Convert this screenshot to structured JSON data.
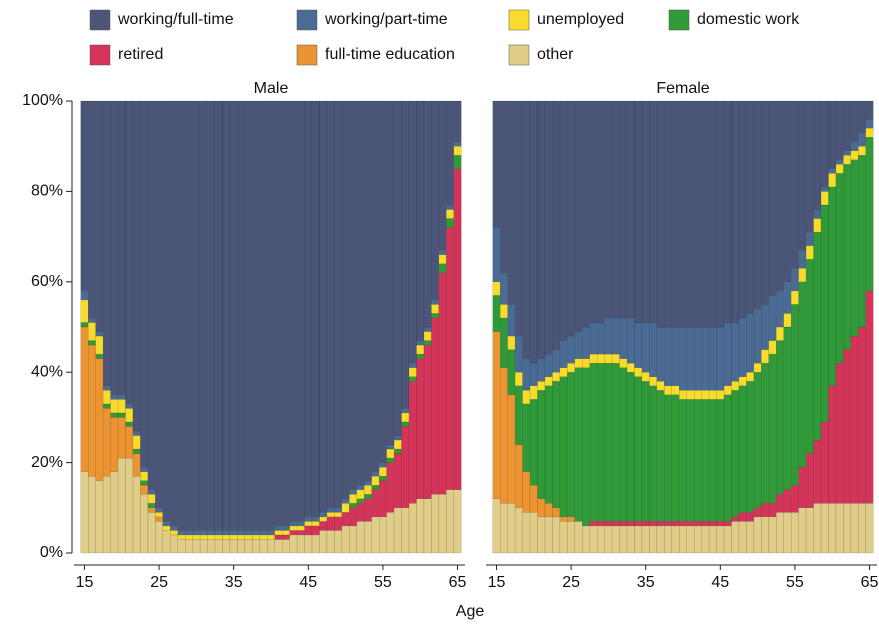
{
  "chart_data": {
    "type": "bar",
    "stacked": true,
    "x_label": "Age",
    "categories": [
      15,
      16,
      17,
      18,
      19,
      20,
      21,
      22,
      23,
      24,
      25,
      26,
      27,
      28,
      29,
      30,
      31,
      32,
      33,
      34,
      35,
      36,
      37,
      38,
      39,
      40,
      41,
      42,
      43,
      44,
      45,
      46,
      47,
      48,
      49,
      50,
      51,
      52,
      53,
      54,
      55,
      56,
      57,
      58,
      59,
      60,
      61,
      62,
      63,
      64,
      65
    ],
    "xlim": [
      14.4,
      65.6
    ],
    "xticks": [
      15,
      25,
      35,
      45,
      55,
      65
    ],
    "ylim": [
      0,
      100
    ],
    "yticks": [
      {
        "value": 0,
        "label": "0%"
      },
      {
        "value": 20,
        "label": "20%"
      },
      {
        "value": 40,
        "label": "40%"
      },
      {
        "value": 60,
        "label": "60%"
      },
      {
        "value": 80,
        "label": "80%"
      },
      {
        "value": 100,
        "label": "100%"
      }
    ],
    "legend_position": "top",
    "legend": [
      {
        "name": "working/full-time",
        "color": "#4b5578"
      },
      {
        "name": "working/part-time",
        "color": "#4a6b93"
      },
      {
        "name": "unemployed",
        "color": "#f8dc2c"
      },
      {
        "name": "domestic work",
        "color": "#2f9a37"
      },
      {
        "name": "retired",
        "color": "#d5345a"
      },
      {
        "name": "full-time education",
        "color": "#ec9432"
      },
      {
        "name": "other",
        "color": "#dfcd88"
      }
    ],
    "panels": [
      {
        "title": "Male",
        "series": [
          {
            "values": [
              42,
              48,
              51,
              63,
              65,
              65,
              67,
              73,
              81,
              86,
              90,
              93,
              94,
              95,
              95,
              95,
              95,
              95,
              95,
              95,
              95,
              95,
              95,
              95,
              95,
              95,
              94,
              94,
              93,
              93,
              92,
              92,
              91,
              90,
              90,
              88,
              86,
              85,
              84,
              82,
              80,
              76,
              74,
              68,
              58,
              53,
              50,
              44,
              33,
              23,
              9
            ]
          },
          {
            "values": [
              2,
              1,
              1,
              1,
              1,
              1,
              1,
              1,
              1,
              1,
              1,
              1,
              1,
              1,
              1,
              1,
              1,
              1,
              1,
              1,
              1,
              1,
              1,
              1,
              1,
              1,
              1,
              1,
              1,
              1,
              1,
              1,
              1,
              1,
              1,
              1,
              1,
              1,
              1,
              1,
              1,
              1,
              1,
              1,
              1,
              1,
              1,
              1,
              1,
              1,
              1
            ]
          },
          {
            "values": [
              5,
              4,
              4,
              3,
              3,
              3,
              3,
              3,
              2,
              2,
              1,
              1,
              1,
              1,
              1,
              1,
              1,
              1,
              1,
              1,
              1,
              1,
              1,
              1,
              1,
              1,
              1,
              1,
              1,
              1,
              1,
              1,
              1,
              1,
              1,
              2,
              2,
              2,
              2,
              2,
              2,
              2,
              2,
              2,
              2,
              2,
              2,
              2,
              2,
              2,
              2
            ]
          },
          {
            "values": [
              1,
              1,
              1,
              1,
              1,
              1,
              1,
              1,
              1,
              1,
              0,
              0,
              0,
              0,
              0,
              0,
              0,
              0,
              0,
              0,
              0,
              0,
              0,
              0,
              0,
              0,
              0,
              0,
              0,
              0,
              0,
              0,
              0,
              0,
              0,
              0,
              1,
              1,
              1,
              1,
              1,
              1,
              1,
              1,
              1,
              1,
              1,
              1,
              2,
              2,
              3
            ]
          },
          {
            "values": [
              0,
              0,
              0,
              0,
              0,
              0,
              0,
              0,
              0,
              0,
              0,
              0,
              0,
              0,
              0,
              0,
              0,
              0,
              0,
              0,
              0,
              0,
              0,
              0,
              0,
              0,
              1,
              1,
              1,
              1,
              2,
              2,
              2,
              3,
              3,
              3,
              4,
              4,
              5,
              6,
              8,
              11,
              12,
              18,
              27,
              31,
              34,
              39,
              49,
              58,
              71
            ]
          },
          {
            "values": [
              32,
              29,
              27,
              15,
              12,
              9,
              7,
              5,
              2,
              1,
              1,
              0,
              0,
              0,
              0,
              0,
              0,
              0,
              0,
              0,
              0,
              0,
              0,
              0,
              0,
              0,
              0,
              0,
              0,
              0,
              0,
              0,
              0,
              0,
              0,
              0,
              0,
              0,
              0,
              0,
              0,
              0,
              0,
              0,
              0,
              0,
              0,
              0,
              0,
              0,
              0
            ]
          },
          {
            "values": [
              18,
              17,
              16,
              17,
              18,
              21,
              21,
              17,
              13,
              9,
              7,
              5,
              4,
              3,
              3,
              3,
              3,
              3,
              3,
              3,
              3,
              3,
              3,
              3,
              3,
              3,
              3,
              3,
              4,
              4,
              4,
              4,
              5,
              5,
              5,
              6,
              6,
              7,
              7,
              8,
              8,
              9,
              10,
              10,
              11,
              12,
              12,
              13,
              13,
              14,
              14
            ]
          }
        ]
      },
      {
        "title": "Female",
        "series": [
          {
            "values": [
              28,
              38,
              45,
              52,
              57,
              58,
              57,
              56,
              55,
              53,
              52,
              51,
              50,
              49,
              49,
              48,
              48,
              48,
              48,
              49,
              49,
              49,
              50,
              50,
              50,
              50,
              50,
              50,
              50,
              50,
              50,
              49,
              49,
              48,
              47,
              46,
              45,
              43,
              42,
              40,
              37,
              33,
              29,
              24,
              19,
              15,
              13,
              11,
              9,
              7,
              4
            ]
          },
          {
            "values": [
              12,
              7,
              7,
              8,
              7,
              5,
              5,
              5,
              5,
              6,
              6,
              6,
              7,
              7,
              7,
              8,
              8,
              9,
              10,
              10,
              11,
              12,
              12,
              13,
              13,
              14,
              14,
              14,
              14,
              14,
              14,
              14,
              13,
              13,
              13,
              12,
              10,
              10,
              8,
              7,
              5,
              4,
              3,
              2,
              1,
              1,
              1,
              1,
              2,
              3,
              2
            ]
          },
          {
            "values": [
              3,
              3,
              3,
              3,
              3,
              3,
              2,
              2,
              2,
              2,
              2,
              2,
              2,
              2,
              2,
              2,
              2,
              2,
              2,
              2,
              2,
              2,
              2,
              2,
              2,
              2,
              2,
              2,
              2,
              2,
              2,
              2,
              2,
              2,
              2,
              2,
              3,
              3,
              3,
              3,
              3,
              3,
              3,
              3,
              3,
              3,
              2,
              2,
              2,
              2,
              2
            ]
          },
          {
            "values": [
              8,
              11,
              10,
              13,
              15,
              19,
              24,
              26,
              28,
              31,
              32,
              34,
              35,
              35,
              35,
              35,
              35,
              34,
              33,
              32,
              31,
              30,
              29,
              28,
              28,
              27,
              27,
              27,
              27,
              27,
              27,
              28,
              28,
              28,
              29,
              30,
              31,
              33,
              34,
              36,
              40,
              41,
              43,
              46,
              48,
              44,
              42,
              41,
              39,
              38,
              34
            ]
          },
          {
            "values": [
              0,
              0,
              0,
              0,
              0,
              0,
              0,
              0,
              0,
              0,
              0,
              0,
              0,
              1,
              1,
              1,
              1,
              1,
              1,
              1,
              1,
              1,
              1,
              1,
              1,
              1,
              1,
              1,
              1,
              1,
              1,
              1,
              1,
              2,
              2,
              2,
              3,
              3,
              4,
              5,
              6,
              9,
              12,
              14,
              18,
              26,
              31,
              34,
              37,
              39,
              47
            ]
          },
          {
            "values": [
              37,
              30,
              24,
              14,
              9,
              6,
              4,
              3,
              2,
              1,
              1,
              0,
              0,
              0,
              0,
              0,
              0,
              0,
              0,
              0,
              0,
              0,
              0,
              0,
              0,
              0,
              0,
              0,
              0,
              0,
              0,
              0,
              0,
              0,
              0,
              0,
              0,
              0,
              0,
              0,
              0,
              0,
              0,
              0,
              0,
              0,
              0,
              0,
              0,
              0,
              0
            ]
          },
          {
            "values": [
              12,
              11,
              11,
              10,
              9,
              9,
              8,
              8,
              8,
              7,
              7,
              7,
              6,
              6,
              6,
              6,
              6,
              6,
              6,
              6,
              6,
              6,
              6,
              6,
              6,
              6,
              6,
              6,
              6,
              6,
              6,
              6,
              7,
              7,
              7,
              8,
              8,
              8,
              9,
              9,
              9,
              10,
              10,
              11,
              11,
              11,
              11,
              11,
              11,
              11,
              11
            ]
          }
        ]
      }
    ]
  }
}
